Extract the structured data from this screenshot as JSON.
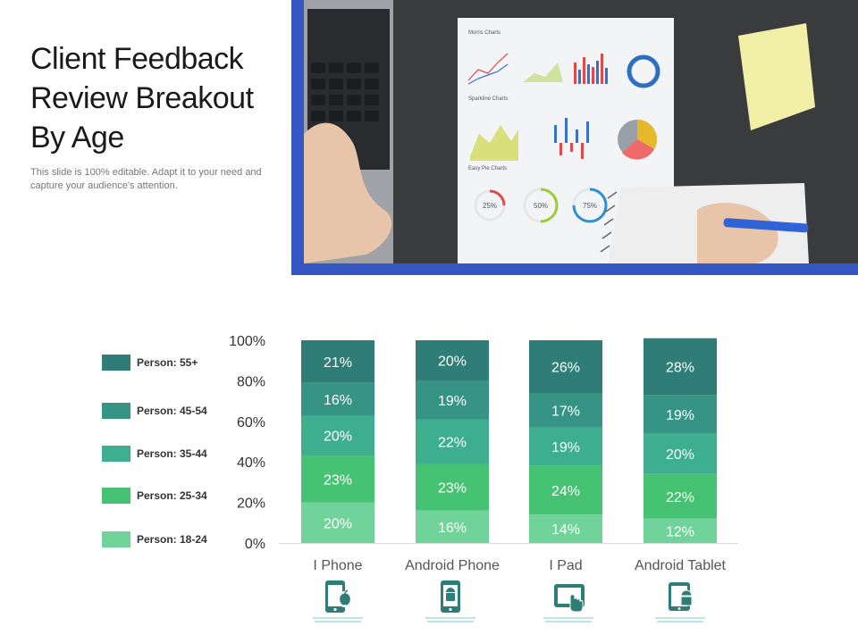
{
  "header": {
    "title": "Client Feedback Review Breakout By Age",
    "subtitle": "This slide is 100% editable. Adapt it to your need and capture your audience's attention."
  },
  "photo": {
    "icon": "desk-analytics-photo",
    "document_heading": "Morris Charts",
    "sparkline_heading": "Sparkline Charts",
    "pie_heading": "Easy Pie Charts",
    "donut_labels": [
      "25%",
      "50%",
      "75%"
    ]
  },
  "colors": {
    "accent_frame": "#3557c4",
    "series": [
      "#2e7d76",
      "#359484",
      "#3dae8e",
      "#45c272",
      "#70d49a"
    ]
  },
  "chart_data": {
    "type": "bar",
    "stacked": true,
    "categories": [
      "I Phone",
      "Android Phone",
      "I Pad",
      "Android Tablet"
    ],
    "series": [
      {
        "name": "Person: 18-24",
        "values": [
          20,
          16,
          14,
          12
        ]
      },
      {
        "name": "Person: 25-34",
        "values": [
          23,
          23,
          24,
          22
        ]
      },
      {
        "name": "Person: 35-44",
        "values": [
          20,
          22,
          19,
          20
        ]
      },
      {
        "name": "Person: 45-54",
        "values": [
          16,
          19,
          17,
          19
        ]
      },
      {
        "name": "Person: 55+",
        "values": [
          21,
          20,
          26,
          28
        ]
      }
    ],
    "yticks": [
      "0%",
      "20%",
      "40%",
      "60%",
      "80%",
      "100%"
    ],
    "ylim": [
      0,
      100
    ],
    "legend_position": "left",
    "category_icons": [
      "iphone-apple-icon",
      "android-phone-icon",
      "ipad-touch-icon",
      "android-tablet-icon"
    ]
  }
}
